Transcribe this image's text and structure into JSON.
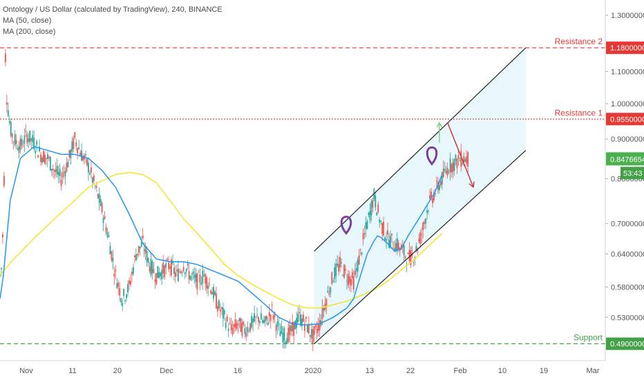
{
  "chart_data": {
    "type": "candlestick",
    "title": "Ontology / US Dollar (calculated by TradingView), 240, BINANCE",
    "indicators": [
      "MA (50, close)",
      "MA (200, close)"
    ],
    "colors": {
      "up": "#26a69a",
      "down": "#ef5350",
      "ma50": "#2196f3",
      "ma200": "#f5e633",
      "resistance": "#e53935",
      "support": "#43a047",
      "channel_fill": "#e3f6fb",
      "channel_line": "#222222",
      "marker": "#7b3fa0",
      "axis_text": "#555555"
    },
    "y_axis": {
      "scale": "log",
      "range": [
        0.466,
        1.36
      ],
      "ticks": [
        "1.3000000",
        "1.1000000",
        "1.0000000",
        "0.9000000",
        "0.8000000",
        "0.7000000",
        "0.6400000",
        "0.5800000",
        "0.5300000"
      ]
    },
    "x_axis": {
      "ticks": [
        "Nov",
        "11",
        "20",
        "Dec",
        "16",
        "2020",
        "13",
        "22",
        "Feb",
        "10",
        "19",
        "Mar"
      ]
    },
    "levels": [
      {
        "label": "Resistance 2",
        "value": 1.18,
        "price_label": "1.1800000",
        "kind": "resistance"
      },
      {
        "label": "Resistance 1",
        "value": 0.955,
        "price_label": "0.9550000",
        "kind": "resistance"
      },
      {
        "label": "Support",
        "value": 0.49,
        "price_label": "0.4900000",
        "kind": "support"
      }
    ],
    "current_price": {
      "value": 0.8476654,
      "price_label": "0.8476654",
      "countdown": "53:43"
    },
    "ma50_path": [
      [
        0,
        0.56
      ],
      [
        0.5,
        0.6
      ],
      [
        1.5,
        0.75
      ],
      [
        3,
        0.85
      ],
      [
        5,
        0.88
      ],
      [
        7,
        0.87
      ],
      [
        9,
        0.86
      ],
      [
        11,
        0.86
      ],
      [
        13,
        0.85
      ],
      [
        15,
        0.82
      ],
      [
        17,
        0.78
      ],
      [
        19,
        0.72
      ],
      [
        21,
        0.66
      ],
      [
        23,
        0.63
      ],
      [
        25,
        0.625
      ],
      [
        27,
        0.625
      ],
      [
        29,
        0.62
      ],
      [
        31,
        0.61
      ],
      [
        33,
        0.6
      ],
      [
        35,
        0.59
      ],
      [
        37,
        0.57
      ],
      [
        39,
        0.55
      ],
      [
        41,
        0.53
      ],
      [
        43,
        0.52
      ],
      [
        45,
        0.518
      ],
      [
        47,
        0.52
      ],
      [
        49,
        0.53
      ],
      [
        51,
        0.545
      ],
      [
        52,
        0.56
      ],
      [
        53,
        0.6
      ],
      [
        54,
        0.64
      ],
      [
        55,
        0.665
      ],
      [
        55.5,
        0.675
      ],
      [
        56,
        0.672
      ],
      [
        57,
        0.66
      ],
      [
        58,
        0.645
      ],
      [
        59,
        0.65
      ],
      [
        60,
        0.675
      ],
      [
        62,
        0.72
      ],
      [
        64,
        0.77
      ],
      [
        65,
        0.81
      ]
    ],
    "ma200_path": [
      [
        0,
        0.6
      ],
      [
        2,
        0.63
      ],
      [
        5,
        0.67
      ],
      [
        8,
        0.71
      ],
      [
        11,
        0.75
      ],
      [
        13,
        0.78
      ],
      [
        15,
        0.795
      ],
      [
        17,
        0.81
      ],
      [
        19,
        0.815
      ],
      [
        21,
        0.81
      ],
      [
        23,
        0.79
      ],
      [
        25,
        0.75
      ],
      [
        27,
        0.71
      ],
      [
        29,
        0.68
      ],
      [
        31,
        0.65
      ],
      [
        33,
        0.62
      ],
      [
        35,
        0.6
      ],
      [
        37,
        0.585
      ],
      [
        39,
        0.572
      ],
      [
        41,
        0.56
      ],
      [
        43,
        0.55
      ],
      [
        45,
        0.545
      ],
      [
        47,
        0.545
      ],
      [
        49,
        0.55
      ],
      [
        51,
        0.556
      ],
      [
        53,
        0.565
      ],
      [
        55,
        0.575
      ],
      [
        57,
        0.59
      ],
      [
        59,
        0.61
      ],
      [
        61,
        0.63
      ],
      [
        63,
        0.655
      ],
      [
        65,
        0.68
      ]
    ],
    "channel": {
      "upper": [
        [
          46.2,
          0.645
        ],
        [
          77.3,
          1.18
        ]
      ],
      "lower": [
        [
          46.2,
          0.49
        ],
        [
          77.3,
          0.87
        ]
      ]
    },
    "projection": {
      "up_arrow": [
        [
          64.6,
          0.89
        ],
        [
          64.6,
          0.945
        ]
      ],
      "down_arrow": [
        [
          65.8,
          0.945
        ],
        [
          69.6,
          0.78
        ]
      ]
    },
    "markers": [
      {
        "x": 50.9,
        "value": 0.7
      },
      {
        "x": 63.5,
        "value": 0.86
      }
    ],
    "price_path": [
      [
        0,
        0.6
      ],
      [
        0.3,
        0.62
      ],
      [
        0.6,
        0.8
      ],
      [
        0.8,
        1.15
      ],
      [
        1,
        1.02
      ],
      [
        1.5,
        0.93
      ],
      [
        2,
        0.9
      ],
      [
        3,
        0.88
      ],
      [
        4,
        0.91
      ],
      [
        5,
        0.89
      ],
      [
        6,
        0.86
      ],
      [
        7,
        0.85
      ],
      [
        8,
        0.82
      ],
      [
        9,
        0.8
      ],
      [
        10,
        0.84
      ],
      [
        11,
        0.9
      ],
      [
        12,
        0.86
      ],
      [
        13,
        0.83
      ],
      [
        14,
        0.78
      ],
      [
        15,
        0.73
      ],
      [
        16,
        0.67
      ],
      [
        17,
        0.6
      ],
      [
        18,
        0.56
      ],
      [
        19,
        0.58
      ],
      [
        20,
        0.64
      ],
      [
        21,
        0.66
      ],
      [
        22,
        0.62
      ],
      [
        23,
        0.6
      ],
      [
        24,
        0.61
      ],
      [
        25,
        0.62
      ],
      [
        26,
        0.6
      ],
      [
        27,
        0.62
      ],
      [
        28,
        0.6
      ],
      [
        29,
        0.59
      ],
      [
        30,
        0.6
      ],
      [
        31,
        0.58
      ],
      [
        32,
        0.55
      ],
      [
        33,
        0.53
      ],
      [
        34,
        0.51
      ],
      [
        35,
        0.52
      ],
      [
        36,
        0.51
      ],
      [
        37,
        0.52
      ],
      [
        38,
        0.53
      ],
      [
        39,
        0.52
      ],
      [
        40,
        0.54
      ],
      [
        41,
        0.51
      ],
      [
        42,
        0.5
      ],
      [
        43,
        0.51
      ],
      [
        44,
        0.53
      ],
      [
        45,
        0.52
      ],
      [
        46,
        0.5
      ],
      [
        47,
        0.52
      ],
      [
        48,
        0.56
      ],
      [
        49,
        0.6
      ],
      [
        50,
        0.62
      ],
      [
        51,
        0.6
      ],
      [
        52,
        0.59
      ],
      [
        53,
        0.64
      ],
      [
        54,
        0.7
      ],
      [
        55,
        0.76
      ],
      [
        56,
        0.7
      ],
      [
        57,
        0.67
      ],
      [
        58,
        0.66
      ],
      [
        59,
        0.65
      ],
      [
        60,
        0.63
      ],
      [
        61,
        0.64
      ],
      [
        62,
        0.68
      ],
      [
        63,
        0.74
      ],
      [
        64,
        0.77
      ],
      [
        65,
        0.8
      ],
      [
        66,
        0.83
      ],
      [
        67,
        0.84
      ],
      [
        68,
        0.85
      ],
      [
        69,
        0.8476654
      ]
    ]
  }
}
